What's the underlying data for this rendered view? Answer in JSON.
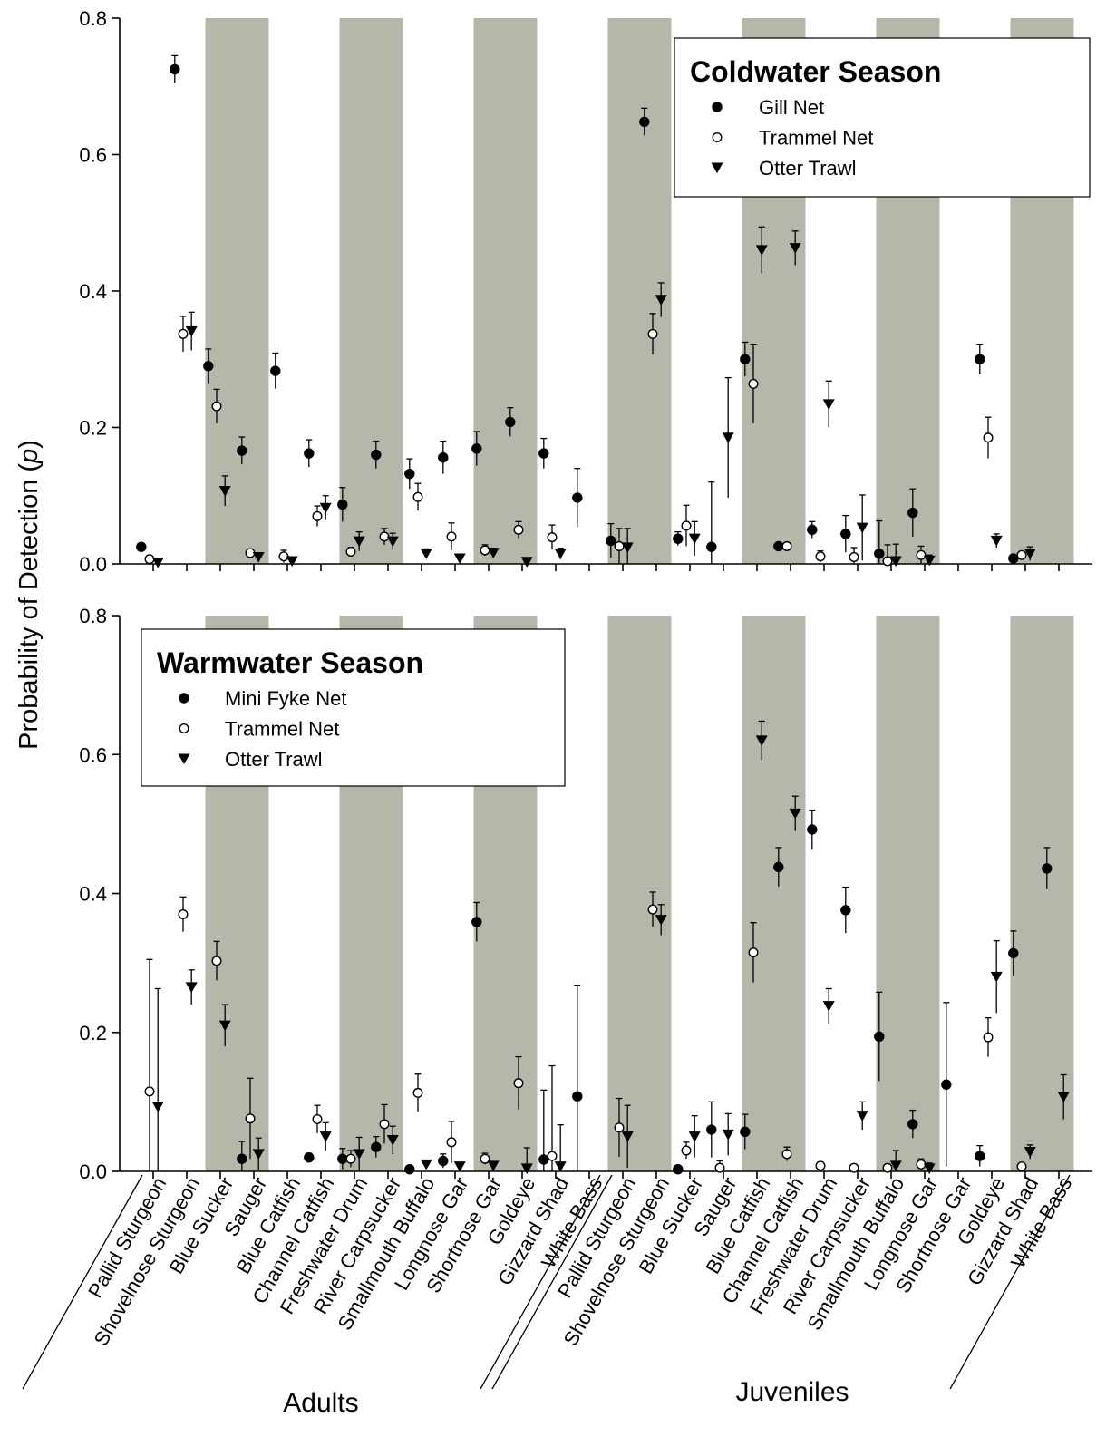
{
  "y_axis_label": "Probability of Detection (",
  "y_axis_label_var": "p",
  "y_axis_label_end": ")",
  "group_labels": [
    "Adults",
    "Juveniles"
  ],
  "colors": {
    "shade": "#b7b6ab",
    "marker": "#000000",
    "open_fill": "#ffffff"
  },
  "chart_data": {
    "type": "scatter",
    "categories": [
      "Pallid Sturgeon",
      "Shovelnose Sturgeon",
      "Blue Sucker",
      "Sauger",
      "Blue Catfish",
      "Channel Catfish",
      "Freshwater Drum",
      "River Carpsucker",
      "Smallmouth Buffalo",
      "Longnose Gar",
      "Shortnose Gar",
      "Goldeye",
      "Gizzard Shad",
      "White Bass",
      "Pallid Sturgeon",
      "Shovelnose Sturgeon",
      "Blue Sucker",
      "Sauger",
      "Blue Catfish",
      "Channel Catfish",
      "Freshwater Drum",
      "River Carpsucker",
      "Smallmouth Buffalo",
      "Longnose Gar",
      "Shortnose Gar",
      "Goldeye",
      "Gizzard Shad",
      "White Bass"
    ],
    "groups": [
      {
        "label": "Adults",
        "from": 0,
        "to": 13
      },
      {
        "label": "Juveniles",
        "from": 14,
        "to": 27
      }
    ],
    "shaded_categories": [
      2,
      3,
      6,
      7,
      10,
      11,
      14,
      15,
      18,
      19,
      22,
      23,
      26,
      27
    ],
    "ylim": [
      0,
      0.8
    ],
    "yticks": [
      "0.0",
      "0.2",
      "0.4",
      "0.6",
      "0.8"
    ],
    "panels": [
      {
        "legend_title": "Coldwater Season",
        "legend_position": "top-right",
        "series": [
          {
            "name": "Gill Net",
            "marker": "filled-circle",
            "points": [
              {
                "i": 0,
                "y": 0.025,
                "err": 0
              },
              {
                "i": 1,
                "y": 0.725,
                "err": 0.02
              },
              {
                "i": 2,
                "y": 0.29,
                "err": 0.025
              },
              {
                "i": 3,
                "y": 0.166,
                "err": 0.02
              },
              {
                "i": 4,
                "y": 0.283,
                "err": 0.026
              },
              {
                "i": 5,
                "y": 0.162,
                "err": 0.02
              },
              {
                "i": 6,
                "y": 0.087,
                "err": 0.025
              },
              {
                "i": 7,
                "y": 0.16,
                "err": 0.02
              },
              {
                "i": 8,
                "y": 0.132,
                "err": 0.022
              },
              {
                "i": 9,
                "y": 0.156,
                "err": 0.024
              },
              {
                "i": 10,
                "y": 0.169,
                "err": 0.025
              },
              {
                "i": 11,
                "y": 0.208,
                "err": 0.021
              },
              {
                "i": 12,
                "y": 0.162,
                "err": 0.022
              },
              {
                "i": 13,
                "y": 0.097,
                "err": 0.043
              },
              {
                "i": 14,
                "y": 0.034,
                "err": 0.025
              },
              {
                "i": 15,
                "y": 0.648,
                "err": 0.02
              },
              {
                "i": 16,
                "y": 0.037,
                "err": 0.01
              },
              {
                "i": 17,
                "y": 0.025,
                "err": 0.095
              },
              {
                "i": 18,
                "y": 0.3,
                "err": 0.025
              },
              {
                "i": 19,
                "y": 0.026,
                "err": 0
              },
              {
                "i": 20,
                "y": 0.05,
                "err": 0.012
              },
              {
                "i": 21,
                "y": 0.044,
                "err": 0.027
              },
              {
                "i": 22,
                "y": 0.015,
                "err": 0.048
              },
              {
                "i": 23,
                "y": 0.075,
                "err": 0.035
              },
              {
                "i": 25,
                "y": 0.3,
                "err": 0.022
              },
              {
                "i": 26,
                "y": 0.008,
                "err": 0
              }
            ]
          },
          {
            "name": "Trammel Net",
            "marker": "open-circle",
            "points": [
              {
                "i": 0,
                "y": 0.007,
                "err": 0
              },
              {
                "i": 1,
                "y": 0.337,
                "err": 0.026
              },
              {
                "i": 2,
                "y": 0.231,
                "err": 0.025
              },
              {
                "i": 3,
                "y": 0.016,
                "err": 0
              },
              {
                "i": 4,
                "y": 0.011,
                "err": 0.009
              },
              {
                "i": 5,
                "y": 0.07,
                "err": 0.015
              },
              {
                "i": 6,
                "y": 0.018,
                "err": 0.006
              },
              {
                "i": 7,
                "y": 0.04,
                "err": 0.012
              },
              {
                "i": 8,
                "y": 0.098,
                "err": 0.02
              },
              {
                "i": 9,
                "y": 0.04,
                "err": 0.02
              },
              {
                "i": 10,
                "y": 0.02,
                "err": 0.008
              },
              {
                "i": 11,
                "y": 0.05,
                "err": 0.012
              },
              {
                "i": 12,
                "y": 0.039,
                "err": 0.018
              },
              {
                "i": 14,
                "y": 0.026,
                "err": 0.026
              },
              {
                "i": 15,
                "y": 0.337,
                "err": 0.03
              },
              {
                "i": 16,
                "y": 0.056,
                "err": 0.03
              },
              {
                "i": 18,
                "y": 0.264,
                "err": 0.058
              },
              {
                "i": 19,
                "y": 0.026,
                "err": 0.004
              },
              {
                "i": 20,
                "y": 0.011,
                "err": 0.008
              },
              {
                "i": 21,
                "y": 0.01,
                "err": 0.014
              },
              {
                "i": 22,
                "y": 0.004,
                "err": 0.024
              },
              {
                "i": 23,
                "y": 0.013,
                "err": 0.013
              },
              {
                "i": 25,
                "y": 0.185,
                "err": 0.03
              },
              {
                "i": 26,
                "y": 0.013,
                "err": 0
              }
            ]
          },
          {
            "name": "Otter Trawl",
            "marker": "filled-triangle-down",
            "points": [
              {
                "i": 0,
                "y": 0.002,
                "err": 0
              },
              {
                "i": 1,
                "y": 0.341,
                "err": 0.028
              },
              {
                "i": 2,
                "y": 0.107,
                "err": 0.022
              },
              {
                "i": 3,
                "y": 0.01,
                "err": 0
              },
              {
                "i": 4,
                "y": 0.004,
                "err": 0
              },
              {
                "i": 5,
                "y": 0.082,
                "err": 0.018
              },
              {
                "i": 6,
                "y": 0.033,
                "err": 0.014
              },
              {
                "i": 7,
                "y": 0.033,
                "err": 0.012
              },
              {
                "i": 8,
                "y": 0.015,
                "err": 0.007
              },
              {
                "i": 9,
                "y": 0.008,
                "err": 0
              },
              {
                "i": 10,
                "y": 0.016,
                "err": 0.007
              },
              {
                "i": 11,
                "y": 0.003,
                "err": 0
              },
              {
                "i": 12,
                "y": 0.015,
                "err": 0.008
              },
              {
                "i": 14,
                "y": 0.024,
                "err": 0.028
              },
              {
                "i": 15,
                "y": 0.387,
                "err": 0.025
              },
              {
                "i": 16,
                "y": 0.037,
                "err": 0.025
              },
              {
                "i": 17,
                "y": 0.185,
                "err": 0.088
              },
              {
                "i": 18,
                "y": 0.46,
                "err": 0.034
              },
              {
                "i": 19,
                "y": 0.463,
                "err": 0.025
              },
              {
                "i": 20,
                "y": 0.234,
                "err": 0.034
              },
              {
                "i": 21,
                "y": 0.053,
                "err": 0.048
              },
              {
                "i": 22,
                "y": 0.004,
                "err": 0.025
              },
              {
                "i": 23,
                "y": 0.005,
                "err": 0.008
              },
              {
                "i": 25,
                "y": 0.034,
                "err": 0.01
              },
              {
                "i": 26,
                "y": 0.015,
                "err": 0.01
              }
            ]
          }
        ]
      },
      {
        "legend_title": "Warmwater Season",
        "legend_position": "top-left",
        "series": [
          {
            "name": "Mini Fyke Net",
            "marker": "filled-circle",
            "points": [
              {
                "i": 3,
                "y": 0.018,
                "err": 0.025
              },
              {
                "i": 5,
                "y": 0.02,
                "err": 0.006
              },
              {
                "i": 6,
                "y": 0.018,
                "err": 0.015
              },
              {
                "i": 7,
                "y": 0.035,
                "err": 0.015
              },
              {
                "i": 8,
                "y": 0.003,
                "err": 0
              },
              {
                "i": 9,
                "y": 0.015,
                "err": 0.01
              },
              {
                "i": 10,
                "y": 0.359,
                "err": 0.028
              },
              {
                "i": 12,
                "y": 0.017,
                "err": 0.1
              },
              {
                "i": 13,
                "y": 0.108,
                "err": 0.16
              },
              {
                "i": 16,
                "y": 0.003,
                "err": 0
              },
              {
                "i": 17,
                "y": 0.06,
                "err": 0.04
              },
              {
                "i": 18,
                "y": 0.057,
                "err": 0.025
              },
              {
                "i": 19,
                "y": 0.438,
                "err": 0.028
              },
              {
                "i": 20,
                "y": 0.492,
                "err": 0.028
              },
              {
                "i": 21,
                "y": 0.376,
                "err": 0.033
              },
              {
                "i": 22,
                "y": 0.194,
                "err": 0.064
              },
              {
                "i": 23,
                "y": 0.068,
                "err": 0.02
              },
              {
                "i": 24,
                "y": 0.125,
                "err": 0.118
              },
              {
                "i": 25,
                "y": 0.022,
                "err": 0.015
              },
              {
                "i": 26,
                "y": 0.314,
                "err": 0.032
              },
              {
                "i": 27,
                "y": 0.436,
                "err": 0.03
              }
            ]
          },
          {
            "name": "Trammel Net",
            "marker": "open-circle",
            "points": [
              {
                "i": 0,
                "y": 0.115,
                "err": 0.19
              },
              {
                "i": 1,
                "y": 0.37,
                "err": 0.025
              },
              {
                "i": 2,
                "y": 0.303,
                "err": 0.028
              },
              {
                "i": 3,
                "y": 0.076,
                "err": 0.058
              },
              {
                "i": 5,
                "y": 0.075,
                "err": 0.02
              },
              {
                "i": 6,
                "y": 0.018,
                "err": 0.012
              },
              {
                "i": 7,
                "y": 0.068,
                "err": 0.028
              },
              {
                "i": 8,
                "y": 0.113,
                "err": 0.027
              },
              {
                "i": 9,
                "y": 0.042,
                "err": 0.03
              },
              {
                "i": 10,
                "y": 0.018,
                "err": 0.008
              },
              {
                "i": 11,
                "y": 0.127,
                "err": 0.038
              },
              {
                "i": 12,
                "y": 0.022,
                "err": 0.13
              },
              {
                "i": 14,
                "y": 0.063,
                "err": 0.042
              },
              {
                "i": 15,
                "y": 0.377,
                "err": 0.025
              },
              {
                "i": 16,
                "y": 0.03,
                "err": 0.012
              },
              {
                "i": 17,
                "y": 0.005,
                "err": 0.01
              },
              {
                "i": 18,
                "y": 0.315,
                "err": 0.043
              },
              {
                "i": 19,
                "y": 0.025,
                "err": 0.01
              },
              {
                "i": 20,
                "y": 0.008,
                "err": 0.005
              },
              {
                "i": 21,
                "y": 0.005,
                "err": 0
              },
              {
                "i": 22,
                "y": 0.005,
                "err": 0
              },
              {
                "i": 23,
                "y": 0.01,
                "err": 0.008
              },
              {
                "i": 25,
                "y": 0.193,
                "err": 0.028
              },
              {
                "i": 26,
                "y": 0.007,
                "err": 0
              }
            ]
          },
          {
            "name": "Otter Trawl",
            "marker": "filled-triangle-down",
            "points": [
              {
                "i": 0,
                "y": 0.093,
                "err": 0.17
              },
              {
                "i": 1,
                "y": 0.265,
                "err": 0.025
              },
              {
                "i": 2,
                "y": 0.21,
                "err": 0.03
              },
              {
                "i": 3,
                "y": 0.025,
                "err": 0.023
              },
              {
                "i": 5,
                "y": 0.05,
                "err": 0.02
              },
              {
                "i": 6,
                "y": 0.025,
                "err": 0.024
              },
              {
                "i": 7,
                "y": 0.045,
                "err": 0.02
              },
              {
                "i": 8,
                "y": 0.01,
                "err": 0.005
              },
              {
                "i": 9,
                "y": 0.007,
                "err": 0.005
              },
              {
                "i": 10,
                "y": 0.008,
                "err": 0
              },
              {
                "i": 11,
                "y": 0.004,
                "err": 0.03
              },
              {
                "i": 12,
                "y": 0.007,
                "err": 0.06
              },
              {
                "i": 14,
                "y": 0.05,
                "err": 0.045
              },
              {
                "i": 15,
                "y": 0.362,
                "err": 0.022
              },
              {
                "i": 16,
                "y": 0.05,
                "err": 0.03
              },
              {
                "i": 17,
                "y": 0.053,
                "err": 0.03
              },
              {
                "i": 18,
                "y": 0.62,
                "err": 0.028
              },
              {
                "i": 19,
                "y": 0.515,
                "err": 0.025
              },
              {
                "i": 20,
                "y": 0.238,
                "err": 0.025
              },
              {
                "i": 21,
                "y": 0.08,
                "err": 0.02
              },
              {
                "i": 22,
                "y": 0.008,
                "err": 0.022
              },
              {
                "i": 23,
                "y": 0.004,
                "err": 0.008
              },
              {
                "i": 25,
                "y": 0.28,
                "err": 0.052
              },
              {
                "i": 26,
                "y": 0.028,
                "err": 0.01
              },
              {
                "i": 27,
                "y": 0.107,
                "err": 0.032
              }
            ]
          }
        ]
      }
    ]
  }
}
